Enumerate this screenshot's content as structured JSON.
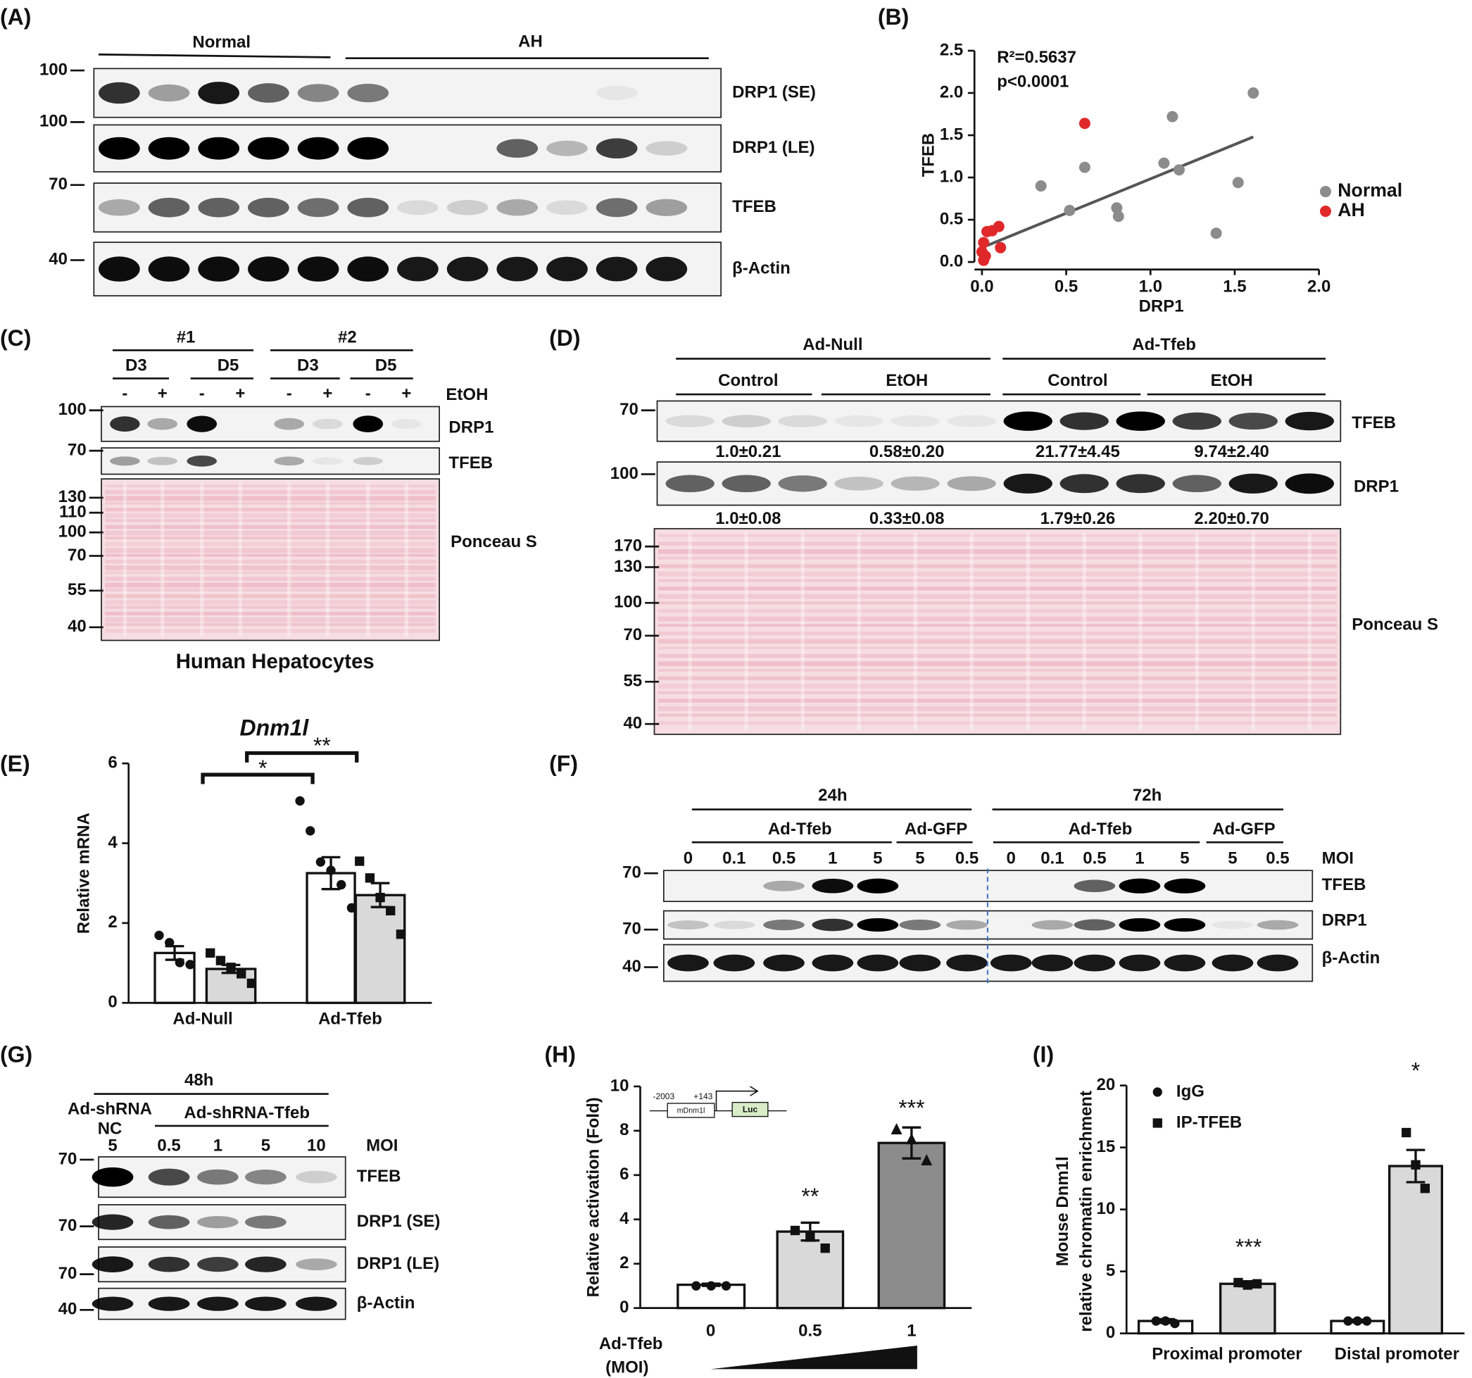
{
  "panel_labels": [
    "(A)",
    "(B)",
    "(C)",
    "(D)",
    "(E)",
    "(F)",
    "(G)",
    "(H)",
    "(I)"
  ],
  "blot_A": {
    "groups": [
      "Normal",
      "AH"
    ],
    "markers": [
      100,
      100,
      70,
      40
    ],
    "rows": [
      "DRP1 (SE)",
      "DRP1 (LE)",
      "TFEB",
      "β-Actin"
    ]
  },
  "blot_C": {
    "groups": [
      "#1",
      "#2"
    ],
    "days": [
      "D3",
      "D5",
      "D3",
      "D5"
    ],
    "treatment": [
      "-",
      "+",
      "-",
      "+",
      "-",
      "+",
      "-",
      "+"
    ],
    "treatment_label": "EtOH",
    "markers": [
      100,
      70
    ],
    "rows": [
      "DRP1",
      "TFEB"
    ],
    "ponceau_markers": [
      130,
      110,
      100,
      70,
      55,
      40
    ],
    "ponceau_label": "Ponceau S",
    "caption": "Human Hepatocytes"
  },
  "blot_D": {
    "groups": [
      "Ad-Null",
      "Ad-Tfeb"
    ],
    "conditions": [
      "Control",
      "EtOH",
      "Control",
      "EtOH"
    ],
    "markers": [
      70,
      100
    ],
    "rows": [
      "TFEB",
      "DRP1"
    ],
    "quantification": [
      [
        "1.0±0.21",
        "0.58±0.20",
        "21.77±4.45",
        "9.74±2.40"
      ],
      [
        "1.0±0.08",
        "0.33±0.08",
        "1.79±0.26",
        "2.20±0.70"
      ]
    ],
    "ponceau_markers": [
      170,
      130,
      100,
      70,
      55,
      40
    ],
    "ponceau_label": "Ponceau S"
  },
  "blot_F": {
    "timepoints": [
      "24h",
      "72h"
    ],
    "vectors": [
      "Ad-Tfeb",
      "Ad-GFP",
      "Ad-Tfeb",
      "Ad-GFP"
    ],
    "moi": [
      0,
      0.1,
      0.5,
      1,
      5,
      5,
      0.5,
      0,
      0.1,
      0.5,
      1,
      5,
      5,
      0.5
    ],
    "moi_label": "MOI",
    "markers": [
      70,
      70,
      40
    ],
    "rows": [
      "TFEB",
      "DRP1",
      "β-Actin"
    ]
  },
  "blot_G": {
    "timepoint": "48h",
    "vectors": [
      "Ad-shRNA",
      "Ad-shRNA-Tfeb"
    ],
    "control": "NC",
    "moi": [
      5,
      0.5,
      1,
      5,
      10
    ],
    "moi_label": "MOI",
    "markers": [
      70,
      70,
      70,
      40
    ],
    "rows": [
      "TFEB",
      "DRP1 (SE)",
      "DRP1 (LE)",
      "β-Actin"
    ]
  },
  "chart_data": [
    {
      "type": "scatter",
      "x_label": "DRP1",
      "y_label": "TFEB",
      "annotations": [
        "R²=0.5637",
        "p<0.0001"
      ],
      "xlim": [
        0,
        2
      ],
      "xticks": [
        {
          "value": 0,
          "label": "0.0"
        },
        0.5,
        {
          "value": 1,
          "label": "1.0"
        },
        1.5,
        {
          "value": 2,
          "label": "2.0"
        }
      ],
      "ylim": [
        0,
        2.5
      ],
      "yticks": [
        {
          "value": 0,
          "label": "0.0"
        },
        0.5,
        {
          "value": 1,
          "label": "1.0"
        },
        1.5,
        {
          "value": 2,
          "label": "2.0"
        },
        2.5
      ],
      "series": [
        {
          "name": "Normal",
          "color": "#8c8c8c",
          "x": [
            1.61,
            1.13,
            0.61,
            1.08,
            1.17,
            0.35,
            1.52,
            0.8,
            0.81,
            0.52,
            1.39
          ],
          "values": [
            2.0,
            1.72,
            1.12,
            1.17,
            1.09,
            0.9,
            0.94,
            0.64,
            0.54,
            0.61,
            0.34
          ]
        },
        {
          "name": "AH",
          "color": "#e0282b",
          "x": [
            0.61,
            0.1,
            0.06,
            0.11,
            0.01,
            0,
            0.02,
            0.01,
            0.03
          ],
          "values": [
            1.64,
            0.42,
            0.37,
            0.17,
            0.23,
            0.12,
            0.07,
            0.02,
            0.36
          ]
        }
      ],
      "trendline": {
        "color": "#555555",
        "x": [
          0,
          1.61
        ],
        "values": [
          0.17,
          1.48
        ]
      },
      "legend": "right"
    },
    {
      "type": "bar",
      "title": "Dnm1l",
      "y_label": "Relative mRNA",
      "categories": [
        "Ad-Null",
        "Ad-Tfeb"
      ],
      "ylim": [
        0,
        6
      ],
      "yticks": [
        0,
        2,
        4,
        6
      ],
      "series": [
        {
          "color": "#ffffff",
          "marker": "circle",
          "values": [
            1.25,
            3.25
          ],
          "errors": [
            0.17,
            0.4
          ],
          "points": [
            [
              1.69,
              1.51,
              1.01,
              0.96
            ],
            [
              5.06,
              4.31,
              3.53,
              3.32,
              2.96,
              2.38,
              1.98
            ]
          ]
        },
        {
          "color": "#d9d9d9",
          "marker": "square",
          "values": [
            0.85,
            2.7
          ],
          "errors": [
            0.1,
            0.3
          ],
          "points": [
            [
              1.25,
              1.06,
              0.89,
              0.73,
              0.49
            ],
            [
              3.55,
              3.13,
              2.64,
              2.31,
              1.72
            ]
          ]
        }
      ],
      "significance": [
        "*",
        "**"
      ]
    },
    {
      "type": "bar",
      "y_label": "Relative activation (Fold)",
      "x_label": [
        "Ad-Tfeb",
        "(MOI)"
      ],
      "categories": [
        "0",
        "0.5",
        "1"
      ],
      "ylim": [
        0,
        10
      ],
      "yticks": [
        0,
        2,
        4,
        6,
        8,
        10
      ],
      "series": [
        {
          "colors": [
            "#ffffff",
            "#d9d9d9",
            "#8c8c8c"
          ],
          "markers": [
            "circle",
            "square",
            "triangle"
          ],
          "values": [
            1.05,
            3.45,
            7.45
          ],
          "errors": [
            0.05,
            0.4,
            0.7
          ],
          "points": [
            [
              1,
              1,
              1
            ],
            [
              3.5,
              3.2,
              2.7
            ],
            [
              8.05,
              7.6,
              6.65
            ]
          ]
        }
      ],
      "significance": [
        "**",
        "***"
      ],
      "construct": {
        "positions": [
          "-2003",
          "+143"
        ],
        "promoter": "mDnm1l",
        "reporter": "Luc"
      }
    },
    {
      "type": "bar",
      "y_label": [
        "Mouse Dnm1l",
        "relative chromatin enrichment"
      ],
      "categories": [
        "Proximal promoter",
        "Distal promoter"
      ],
      "ylim": [
        0,
        20
      ],
      "yticks": [
        0,
        5,
        10,
        15,
        20
      ],
      "series": [
        {
          "name": "IgG",
          "color": "#ffffff",
          "marker": "circle",
          "values": [
            1.0,
            1.0
          ],
          "errors": [
            0.15,
            0.1
          ],
          "points": [
            [
              1.0,
              1.0,
              0.8
            ],
            [
              1.0,
              1.0,
              1.0
            ]
          ]
        },
        {
          "name": "IP-TFEB",
          "color": "#d9d9d9",
          "marker": "square",
          "values": [
            4.0,
            13.5
          ],
          "errors": [
            0.2,
            1.3
          ],
          "points": [
            [
              4.1,
              3.9,
              4.0
            ],
            [
              16.2,
              13.6,
              11.7
            ]
          ]
        }
      ],
      "significance": [
        "***",
        "*"
      ],
      "legend": "top-left"
    }
  ]
}
